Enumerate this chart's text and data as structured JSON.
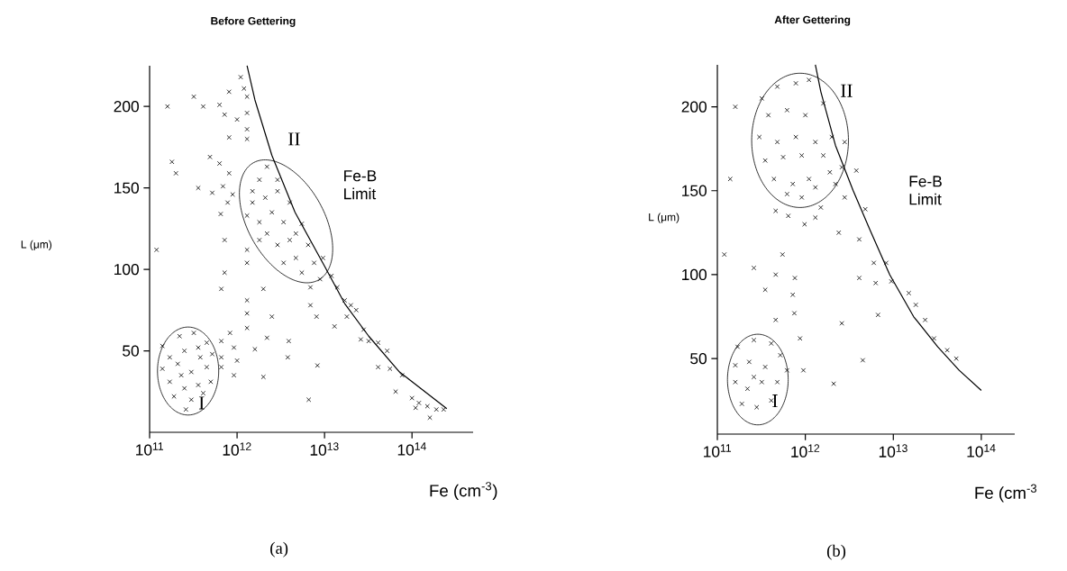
{
  "chart_data": [
    {
      "type": "scatter",
      "title": "Before Gettering",
      "xlabel": "Fe (cm$^{-3}$)",
      "ylabel": "L (μm)",
      "log": "x",
      "marker": "cross",
      "xlim": [
        100000000000.0,
        500000000000000.0
      ],
      "ylim": [
        0,
        225
      ],
      "xticks": [
        {
          "value": 100000000000.0,
          "label": "10$^{11}$"
        },
        {
          "value": 1000000000000.0,
          "label": "10$^{12}$"
        },
        {
          "value": 10000000000000.0,
          "label": "10$^{13}$"
        },
        {
          "value": 100000000000000.0,
          "label": "10$^{14}$"
        }
      ],
      "yticks": [
        50,
        100,
        150,
        200
      ],
      "series": [
        {
          "color": "#000000",
          "x": [
            160000000000.0,
            320000000000.0,
            410000000000.0,
            630000000000.0,
            1100000000000.0,
            810000000000.0,
            1200000000000.0,
            720000000000.0,
            1000000000000.0,
            1300000000000.0,
            1300000000000.0,
            810000000000.0,
            1300000000000.0,
            180000000000.0,
            200000000000.0,
            490000000000.0,
            630000000000.0,
            810000000000.0,
            360000000000.0,
            520000000000.0,
            690000000000.0,
            890000000000.0,
            780000000000.0,
            650000000000.0,
            720000000000.0,
            120000000000.0,
            1300000000000.0,
            1300000000000.0,
            720000000000.0,
            660000000000.0,
            2000000000000.0,
            1300000000000.0,
            1300000000000.0,
            1300000000000.0,
            2500000000000.0,
            13000000000000.0,
            830000000000.0,
            2200000000000.0,
            3900000000000.0,
            920000000000.0,
            1600000000000.0,
            3800000000000.0,
            1000000000000.0,
            8300000000000.0,
            920000000000.0,
            2000000000000.0,
            6600000000000.0,
            660000000000.0,
            660000000000.0,
            660000000000.0,
            1300000000000.0,
            1800000000000.0,
            2200000000000.0,
            2900000000000.0,
            2100000000000.0,
            4000000000000.0,
            1500000000000.0,
            2500000000000.0,
            3400000000000.0,
            1800000000000.0,
            5500000000000.0,
            2200000000000.0,
            4000000000000.0,
            2900000000000.0,
            6500000000000.0,
            4700000000000.0,
            3400000000000.0,
            7600000000000.0,
            5500000000000.0,
            1500000000000.0,
            2900000000000.0,
            1800000000000.0,
            1300000000000.0,
            4700000000000.0,
            9600000000000.0,
            6900000000000.0,
            8900000000000.0,
            6900000000000.0,
            8100000000000.0,
            12000000000000.0,
            14000000000000.0,
            17000000000000.0,
            20000000000000.0,
            23000000000000.0,
            18000000000000.0,
            28000000000000.0,
            32000000000000.0,
            26000000000000.0,
            41000000000000.0,
            52000000000000.0,
            41000000000000.0,
            56000000000000.0,
            77000000000000.0,
            65000000000000.0,
            100000000000000.0,
            120000000000000.0,
            150000000000000.0,
            160000000000000.0,
            190000000000000.0,
            230000000000000.0,
            110000000000000.0,
            140000000000.0,
            220000000000.0,
            320000000000.0,
            450000000000.0,
            170000000000.0,
            250000000000.0,
            380000000000.0,
            520000000000.0,
            140000000000.0,
            210000000000.0,
            300000000000.0,
            450000000000.0,
            170000000000.0,
            250000000000.0,
            360000000000.0,
            500000000000.0,
            190000000000.0,
            300000000000.0,
            410000000000.0,
            260000000000.0,
            230000000000.0,
            360000000000.0
          ],
          "values": [
            200,
            206,
            200,
            201,
            218,
            209,
            211,
            195,
            192,
            196,
            186,
            181,
            180,
            166,
            159,
            169,
            165,
            159,
            150,
            147,
            151,
            146,
            141,
            134,
            118,
            112,
            112,
            104,
            98,
            88,
            88,
            81,
            73,
            64,
            71,
            65,
            61,
            58,
            56,
            52,
            51,
            46,
            44,
            41,
            35,
            34,
            20,
            56,
            46,
            40,
            206,
            155,
            163,
            148,
            144,
            141,
            141,
            135,
            129,
            129,
            128,
            122,
            118,
            115,
            115,
            107,
            104,
            104,
            98,
            148,
            155,
            118,
            133,
            122,
            107,
            89,
            94,
            78,
            71,
            96,
            89,
            81,
            78,
            75,
            71,
            63,
            56,
            57,
            55,
            50,
            40,
            39,
            35,
            25,
            21,
            18,
            16,
            9,
            14,
            14,
            15,
            53,
            59,
            61,
            55,
            46,
            50,
            46,
            48,
            39,
            42,
            37,
            40,
            31,
            27,
            29,
            31,
            22,
            20,
            24,
            14,
            35,
            52
          ]
        },
        {
          "type": "line",
          "color": "#000000",
          "marker": "none",
          "x": [
            1300000000000.0,
            1600000000000.0,
            2500000000000.0,
            4600000000000.0,
            10000000000000.0,
            17000000000000.0,
            32000000000000.0,
            72000000000000.0,
            250000000000000.0
          ],
          "values": [
            225,
            204,
            170,
            135,
            102,
            79,
            59,
            37,
            14.5
          ]
        }
      ],
      "annotations": [
        "II",
        "Fe-B Limit",
        "I",
        "(a)"
      ]
    },
    {
      "type": "scatter",
      "title": "After Gettering",
      "xlabel": "Fe (cm$^{-3}$",
      "ylabel": "L (μm)",
      "log": "x",
      "marker": "cross",
      "xlim": [
        100000000000.0,
        240000000000000.0
      ],
      "ylim": [
        5,
        225
      ],
      "xticks": [
        {
          "value": 100000000000.0,
          "label": "10$^{11}$"
        },
        {
          "value": 1000000000000.0,
          "label": "10$^{12}$"
        },
        {
          "value": 10000000000000.0,
          "label": "10$^{13}$"
        },
        {
          "value": 100000000000000.0,
          "label": "10$^{14}$"
        }
      ],
      "yticks": [
        50,
        100,
        150,
        200
      ],
      "series": [
        {
          "color": "#000000",
          "x": [
            160000000000.0,
            140000000000.0,
            120000000000.0,
            260000000000.0,
            460000000000.0,
            760000000000.0,
            350000000000.0,
            720000000000.0,
            460000000000.0,
            750000000000.0,
            550000000000.0,
            870000000000.0,
            950000000000.0,
            2100000000000.0,
            4500000000000.0,
            2600000000000.0,
            4100000000000.0,
            6300000000000.0,
            6700000000000.0,
            6000000000000.0,
            9500000000000.0,
            4100000000000.0,
            2400000000000.0,
            460000000000.0,
            640000000000.0,
            980000000000.0,
            1300000000000.0,
            1500000000000.0,
            2800000000000.0,
            3800000000000.0,
            4800000000000.0,
            8300000000000.0,
            15000000000000.0,
            18000000000000.0,
            23000000000000.0,
            29000000000000.0,
            41000000000000.0,
            52000000000000.0,
            2600000000000.0,
            2800000000000.0,
            320000000000.0,
            480000000000.0,
            780000000000.0,
            1100000000000.0,
            380000000000.0,
            620000000000.0,
            1000000000000.0,
            1600000000000.0,
            300000000000.0,
            480000000000.0,
            780000000000.0,
            1300000000000.0,
            2000000000000.0,
            350000000000.0,
            560000000000.0,
            910000000000.0,
            1600000000000.0,
            440000000000.0,
            720000000000.0,
            1100000000000.0,
            1900000000000.0,
            620000000000.0,
            910000000000.0,
            1300000000000.0,
            2200000000000.0,
            170000000000.0,
            260000000000.0,
            410000000000.0,
            520000000000.0,
            160000000000.0,
            230000000000.0,
            350000000000.0,
            160000000000.0,
            220000000000.0,
            320000000000.0,
            480000000000.0,
            190000000000.0,
            280000000000.0,
            410000000000.0,
            260000000000.0,
            620000000000.0
          ],
          "values": [
            200,
            157,
            112,
            104,
            100,
            98,
            91,
            88,
            73,
            77,
            112,
            62,
            43,
            35,
            49,
            71,
            98,
            95,
            76,
            107,
            96,
            121,
            125,
            138,
            135,
            130,
            134,
            140,
            146,
            162,
            139,
            107,
            89,
            82,
            73,
            62,
            55,
            50,
            164,
            179,
            205,
            212,
            214,
            216,
            195,
            198,
            195,
            202,
            182,
            179,
            182,
            179,
            182,
            168,
            170,
            171,
            171,
            157,
            154,
            157,
            161,
            148,
            146,
            152,
            154,
            57,
            61,
            59,
            52,
            46,
            48,
            45,
            36,
            32,
            36,
            36,
            23,
            21,
            25,
            39,
            43
          ]
        },
        {
          "type": "line",
          "color": "#000000",
          "marker": "none",
          "x": [
            1300000000000.0,
            1500000000000.0,
            2200000000000.0,
            3500000000000.0,
            5600000000000.0,
            9100000000000.0,
            17000000000000.0,
            32000000000000.0,
            56000000000000.0,
            100000000000000.0
          ],
          "values": [
            225,
            209,
            177,
            150,
            125,
            100,
            75,
            57,
            43,
            31
          ]
        }
      ],
      "annotations": [
        "II",
        "Fe-B Limit",
        "I",
        "(b)"
      ]
    }
  ]
}
